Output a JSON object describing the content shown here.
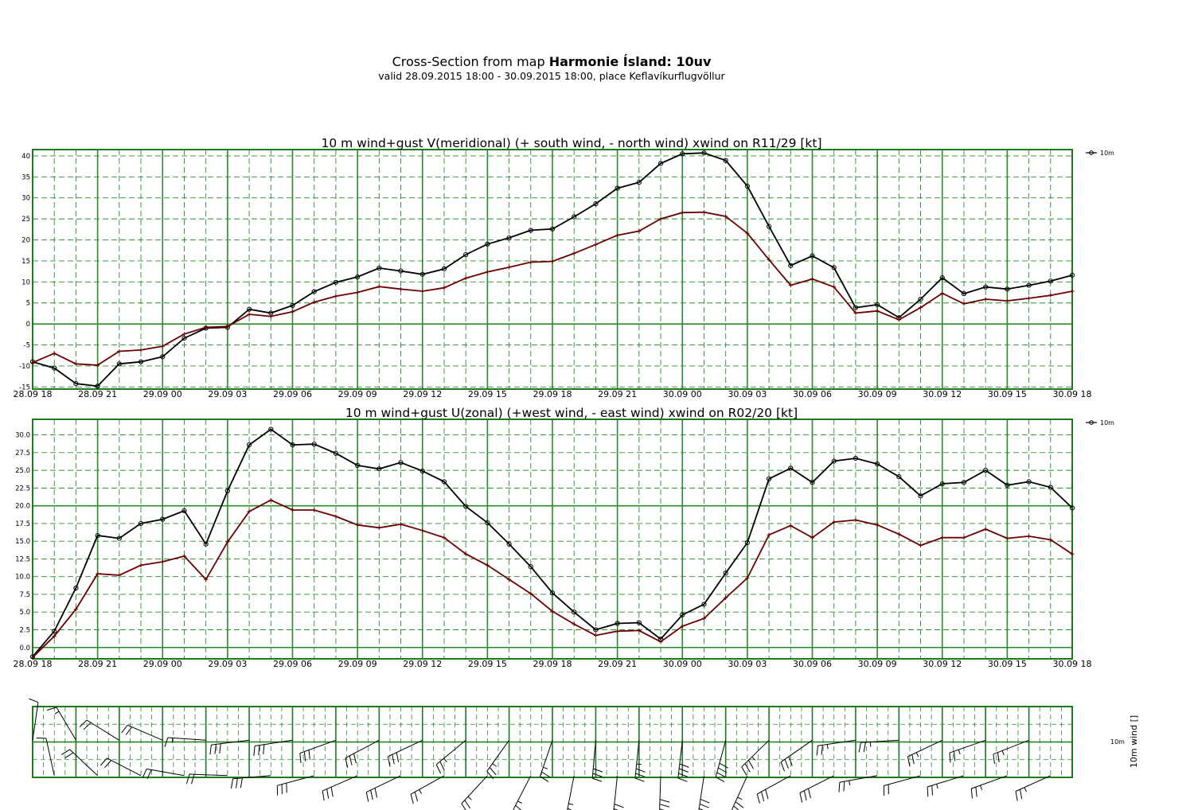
{
  "header": {
    "title_prefix": "Cross-Section from map ",
    "title_bold": "Harmonie Ísland: 10uv",
    "subtitle": "valid 28.09.2015 18:00 - 30.09.2015 18:00, place Keflavíkurflugvöllur"
  },
  "colors": {
    "grid": "#2a8a2a",
    "frame": "#1b7a1b",
    "wind_line": "#000000",
    "gust_line": "#6b0000",
    "barb": "#000000"
  },
  "chart_data": [
    {
      "type": "line",
      "title": "10 m wind+gust V(meridional) (+ south wind, - north wind) xwind on R11/29 [kt]",
      "xlabel": "",
      "ylabel": "",
      "x_tick_labels": [
        "28.09 18",
        "28.09 21",
        "29.09 00",
        "29.09 03",
        "29.09 06",
        "29.09 09",
        "29.09 12",
        "29.09 15",
        "29.09 18",
        "29.09 21",
        "30.09 00",
        "30.09 03",
        "30.09 06",
        "30.09 09",
        "30.09 12",
        "30.09 15",
        "30.09 18"
      ],
      "x_hours": [
        0,
        1,
        2,
        3,
        4,
        5,
        6,
        7,
        8,
        9,
        10,
        11,
        12,
        13,
        14,
        15,
        16,
        17,
        18,
        19,
        20,
        21,
        22,
        23,
        24,
        25,
        26,
        27,
        28,
        29,
        30,
        31,
        32,
        33,
        34,
        35,
        36,
        37,
        38,
        39,
        40,
        41,
        42,
        43,
        44,
        45,
        46,
        47,
        48
      ],
      "y_tick_labels": [
        "40",
        "35",
        "30",
        "25",
        "20",
        "15",
        "10",
        "5",
        "0",
        "-5",
        "-10",
        "-15"
      ],
      "y_ticks": [
        40,
        35,
        30,
        25,
        20,
        15,
        10,
        5,
        0,
        -5,
        -10,
        -15
      ],
      "ylim": [
        -15.5,
        41.5
      ],
      "grid": true,
      "legend": {
        "position": "top-right",
        "label": "10m"
      },
      "series": [
        {
          "name": "10m",
          "marker": "circle",
          "values": [
            -9.0,
            -10.5,
            -14.2,
            -14.8,
            -9.5,
            -9.0,
            -7.8,
            -3.4,
            -1.0,
            -0.8,
            3.5,
            2.6,
            4.4,
            7.7,
            9.9,
            11.2,
            13.3,
            12.6,
            11.8,
            13.1,
            16.5,
            19.0,
            20.5,
            22.3,
            22.6,
            25.5,
            28.6,
            32.3,
            33.7,
            38.2,
            40.5,
            40.7,
            38.9,
            32.8,
            23.2,
            13.9,
            16.2,
            13.4,
            3.9,
            4.6,
            1.5,
            5.9,
            11.0,
            7.2,
            8.8,
            8.3,
            9.2,
            10.2,
            11.6
          ]
        },
        {
          "name": "",
          "marker": "plus",
          "values": [
            -9.2,
            -7.0,
            -9.5,
            -9.8,
            -6.5,
            -6.2,
            -5.3,
            -2.4,
            -0.8,
            -0.6,
            2.3,
            1.8,
            2.9,
            5.2,
            6.6,
            7.5,
            8.9,
            8.3,
            7.8,
            8.6,
            10.9,
            12.4,
            13.5,
            14.7,
            14.9,
            16.8,
            18.9,
            21.1,
            22.1,
            25.0,
            26.5,
            26.6,
            25.6,
            21.6,
            15.3,
            9.2,
            10.7,
            8.8,
            2.6,
            3.1,
            1.0,
            3.9,
            7.3,
            4.8,
            5.9,
            5.5,
            6.1,
            6.8,
            7.8
          ]
        }
      ]
    },
    {
      "type": "line",
      "title": "10 m wind+gust U(zonal) (+west wind, - east wind) xwind on R02/20 [kt]",
      "xlabel": "",
      "ylabel": "",
      "x_tick_labels": [
        "28.09 18",
        "28.09 21",
        "29.09 00",
        "29.09 03",
        "29.09 06",
        "29.09 09",
        "29.09 12",
        "29.09 15",
        "29.09 18",
        "29.09 21",
        "30.09 00",
        "30.09 03",
        "30.09 06",
        "30.09 09",
        "30.09 12",
        "30.09 15",
        "30.09 18"
      ],
      "x_hours": [
        0,
        1,
        2,
        3,
        4,
        5,
        6,
        7,
        8,
        9,
        10,
        11,
        12,
        13,
        14,
        15,
        16,
        17,
        18,
        19,
        20,
        21,
        22,
        23,
        24,
        25,
        26,
        27,
        28,
        29,
        30,
        31,
        32,
        33,
        34,
        35,
        36,
        37,
        38,
        39,
        40,
        41,
        42,
        43,
        44,
        45,
        46,
        47,
        48
      ],
      "y_tick_labels": [
        "30.0",
        "27.5",
        "25.0",
        "22.5",
        "20.0",
        "17.5",
        "15.0",
        "12.5",
        "10.0",
        "7.5",
        "5.0",
        "2.5",
        "0.0"
      ],
      "y_ticks": [
        30,
        27.5,
        25,
        22.5,
        20,
        17.5,
        15,
        12.5,
        10,
        7.5,
        5,
        2.5,
        0
      ],
      "ylim": [
        -1.6,
        32.2
      ],
      "grid": true,
      "legend": {
        "position": "top-right",
        "label": "10m"
      },
      "series": [
        {
          "name": "10m",
          "marker": "circle",
          "values": [
            -1.3,
            2.3,
            8.4,
            15.8,
            15.4,
            17.5,
            18.1,
            19.3,
            14.6,
            22.1,
            28.6,
            30.8,
            28.6,
            28.7,
            27.4,
            25.7,
            25.2,
            26.1,
            24.9,
            23.4,
            19.9,
            17.6,
            14.6,
            11.4,
            7.7,
            5.0,
            2.5,
            3.4,
            3.5,
            1.2,
            4.6,
            6.1,
            10.5,
            14.8,
            23.8,
            25.3,
            23.3,
            26.3,
            26.7,
            25.9,
            24.1,
            21.4,
            23.1,
            23.3,
            25.0,
            22.9,
            23.4,
            22.6,
            19.7
          ]
        },
        {
          "name": "",
          "marker": "plus",
          "values": [
            -1.4,
            1.6,
            5.4,
            10.4,
            10.2,
            11.6,
            12.1,
            12.9,
            9.6,
            14.9,
            19.2,
            20.8,
            19.4,
            19.4,
            18.5,
            17.3,
            16.9,
            17.4,
            16.5,
            15.5,
            13.2,
            11.6,
            9.6,
            7.6,
            5.1,
            3.3,
            1.7,
            2.3,
            2.4,
            0.8,
            3.0,
            4.1,
            7.0,
            9.8,
            15.9,
            17.2,
            15.5,
            17.7,
            18.0,
            17.3,
            16.0,
            14.4,
            15.5,
            15.5,
            16.7,
            15.4,
            15.7,
            15.2,
            13.2
          ]
        }
      ]
    },
    {
      "type": "barbs",
      "title": "",
      "ylabel": "10m wind []",
      "level_label": "10m",
      "frames": 24,
      "barbs": [
        {
          "u": -1.3,
          "v": -9.0
        },
        {
          "u": 2.3,
          "v": -10.5
        },
        {
          "u": 8.4,
          "v": -14.2
        },
        {
          "u": 15.8,
          "v": -14.8
        },
        {
          "u": 15.4,
          "v": -9.5
        },
        {
          "u": 17.5,
          "v": -9.0
        },
        {
          "u": 18.1,
          "v": -7.8
        },
        {
          "u": 19.3,
          "v": -3.4
        },
        {
          "u": 14.6,
          "v": -1.0
        },
        {
          "u": 22.1,
          "v": -0.8
        },
        {
          "u": 28.6,
          "v": 3.5
        },
        {
          "u": 30.8,
          "v": 2.6
        },
        {
          "u": 28.6,
          "v": 4.4
        },
        {
          "u": 28.7,
          "v": 7.7
        },
        {
          "u": 27.4,
          "v": 9.9
        },
        {
          "u": 25.7,
          "v": 11.2
        },
        {
          "u": 25.2,
          "v": 13.3
        },
        {
          "u": 26.1,
          "v": 12.6
        },
        {
          "u": 24.9,
          "v": 11.8
        },
        {
          "u": 23.4,
          "v": 13.1
        },
        {
          "u": 19.9,
          "v": 16.5
        },
        {
          "u": 17.6,
          "v": 19.0
        },
        {
          "u": 14.6,
          "v": 20.5
        },
        {
          "u": 11.4,
          "v": 22.3
        },
        {
          "u": 7.7,
          "v": 22.6
        },
        {
          "u": 5.0,
          "v": 25.5
        },
        {
          "u": 2.5,
          "v": 28.6
        },
        {
          "u": 3.4,
          "v": 32.3
        },
        {
          "u": 3.5,
          "v": 33.7
        },
        {
          "u": 1.2,
          "v": 38.2
        },
        {
          "u": 4.6,
          "v": 40.5
        },
        {
          "u": 6.1,
          "v": 40.7
        },
        {
          "u": 10.5,
          "v": 38.9
        },
        {
          "u": 14.8,
          "v": 32.8
        },
        {
          "u": 23.8,
          "v": 23.2
        },
        {
          "u": 25.3,
          "v": 13.9
        },
        {
          "u": 23.3,
          "v": 16.2
        },
        {
          "u": 26.3,
          "v": 13.4
        },
        {
          "u": 26.7,
          "v": 3.9
        },
        {
          "u": 25.9,
          "v": 4.6
        },
        {
          "u": 24.1,
          "v": 1.5
        },
        {
          "u": 21.4,
          "v": 5.9
        },
        {
          "u": 23.1,
          "v": 11.0
        },
        {
          "u": 23.3,
          "v": 7.2
        },
        {
          "u": 25.0,
          "v": 8.8
        },
        {
          "u": 22.9,
          "v": 8.3
        },
        {
          "u": 23.4,
          "v": 9.2
        },
        {
          "u": 22.6,
          "v": 10.2
        }
      ]
    }
  ]
}
